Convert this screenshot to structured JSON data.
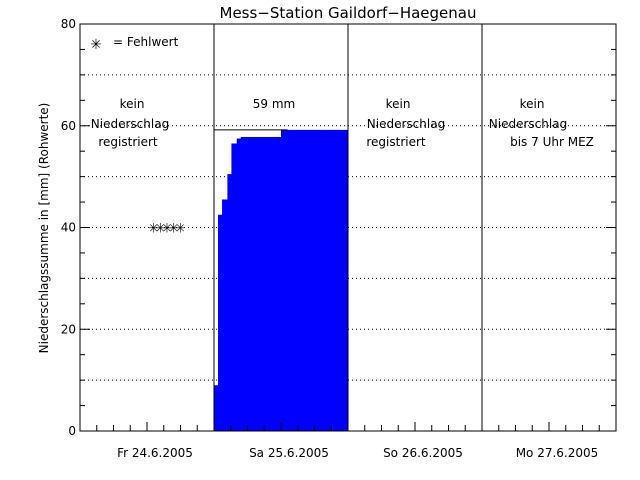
{
  "chart_data": {
    "type": "area",
    "title": "Mess−Station Gaildorf−Haegenau",
    "ylabel": "Niederschlagssumme in [mm] (Rohwerte)",
    "xlabel": "",
    "ylim": [
      0,
      80
    ],
    "xlim": [
      0,
      4
    ],
    "y_ticks": [
      "0",
      "20",
      "40",
      "60",
      "80"
    ],
    "y_ticks_values": [
      0,
      20,
      40,
      60,
      80
    ],
    "grid": true,
    "days": [
      {
        "label": "Fr 24.6.2005",
        "note": [
          "kein",
          "Niederschlag",
          "registriert"
        ]
      },
      {
        "label": "Sa 25.6.2005",
        "note": [
          "59 mm"
        ]
      },
      {
        "label": "So 26.6.2005",
        "note": [
          "kein",
          "Niederschlag",
          "registriert"
        ]
      },
      {
        "label": "Mo 27.6.2005",
        "note": [
          "kein",
          "Niederschlag",
          "bis 7 Uhr MEZ"
        ]
      }
    ],
    "legend": {
      "symbol": "✳",
      "text": "= Fehlwert",
      "placement": "top-left"
    },
    "missing_values": {
      "x": [
        0.55,
        0.6,
        0.65,
        0.7,
        0.75
      ],
      "y": 40
    },
    "series": [
      {
        "x": [
          1.0,
          1.03,
          1.06,
          1.1,
          1.13,
          1.17,
          1.2,
          1.25,
          1.5,
          1.55,
          2.0
        ],
        "y": [
          9.0,
          42.5,
          45.5,
          50.5,
          56.5,
          57.5,
          57.8,
          57.8,
          59.2,
          59.2,
          59.2
        ]
      }
    ],
    "envelope": {
      "x": [
        1.0,
        1.0,
        1.55,
        1.55
      ],
      "y": [
        9.0,
        59.2,
        59.2,
        59.2
      ]
    },
    "colors": {
      "area": "#0000ff",
      "axes": "#000000"
    }
  }
}
